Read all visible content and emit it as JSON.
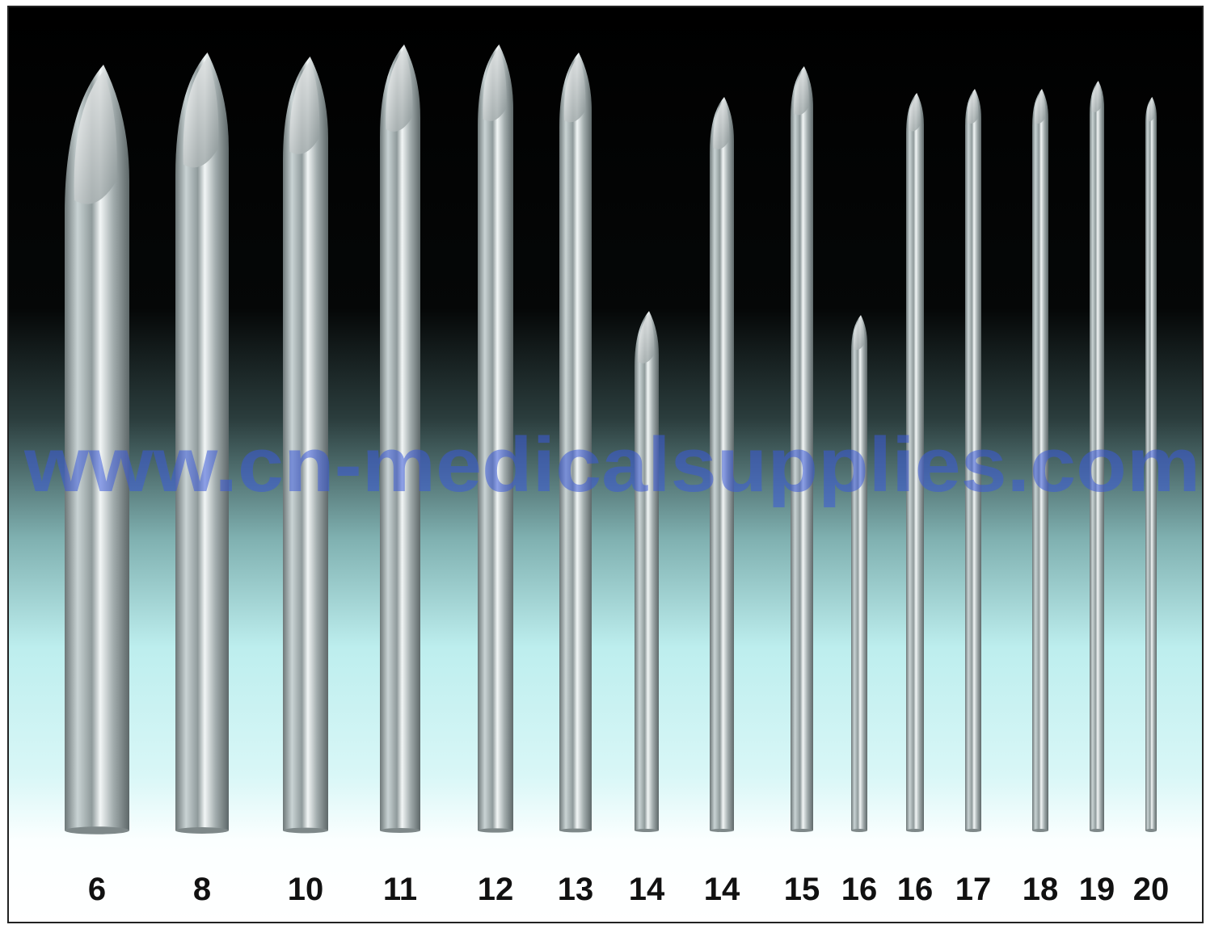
{
  "watermark": "www.cn-medicalsupplies.com",
  "gauges": [
    "6",
    "8",
    "10",
    "11",
    "12",
    "13",
    "14",
    "14",
    "15",
    "16",
    "16",
    "17",
    "18",
    "19",
    "20"
  ]
}
